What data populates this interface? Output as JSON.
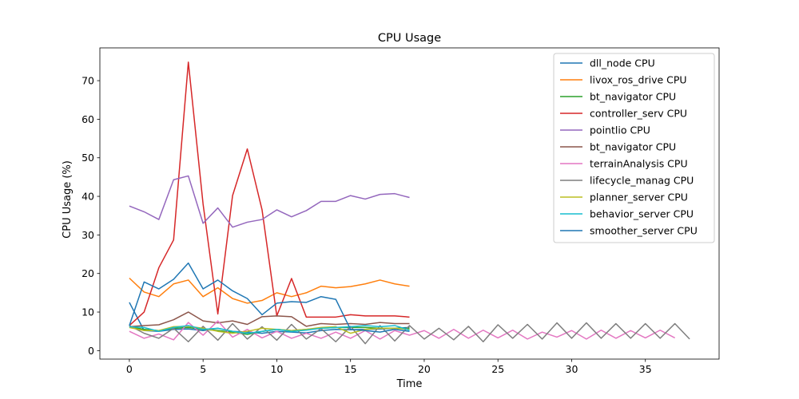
{
  "chart_data": {
    "type": "line",
    "title": "CPU Usage",
    "xlabel": "Time",
    "ylabel": "CPU Usage (%)",
    "xlim": [
      -2,
      40
    ],
    "ylim": [
      -2.2,
      78.5
    ],
    "xticks": [
      0,
      5,
      10,
      15,
      20,
      25,
      30,
      35
    ],
    "yticks": [
      0,
      10,
      20,
      30,
      40,
      50,
      60,
      70
    ],
    "legend_position": "top-right",
    "grid": false,
    "series": [
      {
        "name": "dll_node CPU",
        "color": "#1f77b4",
        "x": [
          0,
          1,
          2,
          3,
          4,
          5,
          6,
          7,
          8,
          9,
          10,
          11,
          12,
          13,
          14,
          15,
          16,
          17,
          18,
          19
        ],
        "values": [
          12.5,
          5.2,
          5.0,
          5.5,
          5.6,
          5.2,
          5.8,
          5.0,
          4.8,
          4.5,
          5.0,
          4.8,
          4.6,
          5.2,
          5.5,
          5.4,
          5.5,
          5.6,
          5.8,
          6.0
        ]
      },
      {
        "name": "livox_ros_drive CPU",
        "color": "#ff7f0e",
        "x": [
          0,
          1,
          2,
          3,
          4,
          5,
          6,
          7,
          8,
          9,
          10,
          11,
          12,
          13,
          14,
          15,
          16,
          17,
          18,
          19
        ],
        "values": [
          18.8,
          15.2,
          14.0,
          17.3,
          18.3,
          14.0,
          16.3,
          13.5,
          12.3,
          13.0,
          15.0,
          14.0,
          15.0,
          16.7,
          16.3,
          16.6,
          17.3,
          18.3,
          17.3,
          16.7
        ]
      },
      {
        "name": "bt_navigator CPU",
        "color": "#2ca02c",
        "x": [
          0,
          1,
          2,
          3,
          4,
          5,
          6,
          7,
          8,
          9,
          10,
          11,
          12,
          13,
          14,
          15,
          16,
          17,
          18,
          19
        ],
        "values": [
          6.2,
          5.5,
          5.2,
          5.8,
          6.0,
          5.5,
          5.2,
          4.8,
          4.2,
          5.0,
          5.5,
          5.2,
          5.5,
          5.8,
          6.0,
          6.0,
          6.0,
          5.8,
          5.8,
          5.8
        ]
      },
      {
        "name": "controller_serv CPU",
        "color": "#d62728",
        "x": [
          0,
          1,
          2,
          3,
          4,
          5,
          6,
          7,
          8,
          9,
          10,
          11,
          12,
          13,
          14,
          15,
          16,
          17,
          18,
          19
        ],
        "values": [
          6.5,
          10.0,
          21.5,
          28.7,
          74.8,
          38.0,
          9.5,
          40.2,
          52.3,
          36.5,
          9.0,
          18.7,
          8.7,
          8.7,
          8.7,
          9.3,
          9.0,
          9.0,
          9.0,
          8.7
        ]
      },
      {
        "name": "pointlio CPU",
        "color": "#9467bd",
        "x": [
          0,
          1,
          2,
          3,
          4,
          5,
          6,
          7,
          8,
          9,
          10,
          11,
          12,
          13,
          14,
          15,
          16,
          17,
          18,
          19
        ],
        "values": [
          37.5,
          36.0,
          34.0,
          44.3,
          45.3,
          33.0,
          37.0,
          32.0,
          33.3,
          34.0,
          36.5,
          34.7,
          36.3,
          38.7,
          38.7,
          40.2,
          39.3,
          40.5,
          40.7,
          39.7
        ]
      },
      {
        "name": "bt_navigator CPU",
        "color": "#8c564b",
        "x": [
          0,
          1,
          2,
          3,
          4,
          5,
          6,
          7,
          8,
          9,
          10,
          11,
          12,
          13,
          14,
          15,
          16,
          17,
          18,
          19
        ],
        "values": [
          6.2,
          6.5,
          6.7,
          8.0,
          10.0,
          7.7,
          7.2,
          7.7,
          6.8,
          8.8,
          9.0,
          8.8,
          6.3,
          7.0,
          6.8,
          7.0,
          6.8,
          7.3,
          7.0,
          7.0
        ]
      },
      {
        "name": "terrainAnalysis CPU",
        "color": "#e377c2",
        "x": [
          0,
          1,
          2,
          3,
          4,
          5,
          6,
          7,
          8,
          9,
          10,
          11,
          12,
          13,
          14,
          15,
          16,
          17,
          18,
          19,
          20,
          21,
          22,
          23,
          24,
          25,
          26,
          27,
          28,
          29,
          30,
          31,
          32,
          33,
          34,
          35,
          36,
          37
        ],
        "values": [
          5.0,
          3.2,
          4.3,
          2.8,
          7.3,
          4.0,
          7.7,
          3.5,
          5.5,
          3.3,
          5.0,
          3.2,
          4.5,
          3.2,
          4.8,
          3.2,
          5.2,
          3.0,
          5.2,
          4.0,
          5.2,
          3.2,
          5.5,
          3.2,
          5.3,
          3.3,
          5.3,
          3.0,
          4.8,
          3.5,
          5.2,
          3.0,
          5.3,
          3.2,
          5.2,
          3.3,
          5.3,
          3.3
        ]
      },
      {
        "name": "lifecycle_manag CPU",
        "color": "#7f7f7f",
        "x": [
          0,
          1,
          2,
          3,
          4,
          5,
          6,
          7,
          8,
          9,
          10,
          11,
          12,
          13,
          14,
          15,
          16,
          17,
          18,
          19,
          20,
          21,
          22,
          23,
          24,
          25,
          26,
          27,
          28,
          29,
          30,
          31,
          32,
          33,
          34,
          35,
          36,
          37,
          38
        ],
        "values": [
          6.5,
          4.5,
          3.2,
          5.8,
          2.3,
          6.3,
          2.7,
          7.0,
          3.0,
          6.2,
          2.7,
          6.8,
          3.0,
          5.7,
          2.3,
          6.3,
          1.8,
          6.5,
          2.5,
          6.5,
          3.0,
          5.8,
          2.8,
          6.3,
          2.3,
          6.7,
          3.2,
          6.8,
          3.0,
          7.2,
          3.2,
          7.2,
          3.2,
          7.0,
          3.2,
          7.0,
          3.2,
          7.0,
          3.0
        ]
      },
      {
        "name": "planner_server CPU",
        "color": "#bcbd22",
        "x": [
          0,
          1,
          2,
          3,
          4,
          5,
          6,
          7,
          8,
          9,
          10,
          11,
          12,
          13,
          14,
          15,
          16,
          17,
          18,
          19
        ],
        "values": [
          6.0,
          5.2,
          5.2,
          6.2,
          6.3,
          5.8,
          5.0,
          4.5,
          5.0,
          5.8,
          5.5,
          5.2,
          5.5,
          6.0,
          6.2,
          4.5,
          5.5,
          5.8,
          5.8,
          5.5
        ]
      },
      {
        "name": "behavior_server CPU",
        "color": "#17becf",
        "x": [
          0,
          1,
          2,
          3,
          4,
          5,
          6,
          7,
          8,
          9,
          10,
          11,
          12,
          13,
          14,
          15,
          16,
          17,
          18,
          19
        ],
        "values": [
          6.2,
          6.0,
          5.0,
          6.0,
          6.5,
          5.5,
          5.8,
          5.0,
          4.5,
          5.0,
          5.5,
          5.0,
          5.3,
          5.8,
          6.0,
          6.2,
          6.5,
          6.2,
          6.5,
          5.3
        ]
      },
      {
        "name": "smoother_server CPU",
        "color": "#1f77b4",
        "x": [
          0,
          1,
          2,
          3,
          4,
          5,
          6,
          7,
          8,
          9,
          10,
          11,
          12,
          13,
          14,
          15,
          16,
          17,
          18,
          19
        ],
        "values": [
          6.5,
          17.8,
          16.0,
          18.5,
          22.7,
          16.0,
          18.3,
          15.5,
          13.5,
          9.3,
          12.3,
          12.7,
          12.5,
          14.0,
          13.3,
          5.5,
          5.2,
          4.8,
          5.5,
          5.0
        ]
      }
    ]
  }
}
